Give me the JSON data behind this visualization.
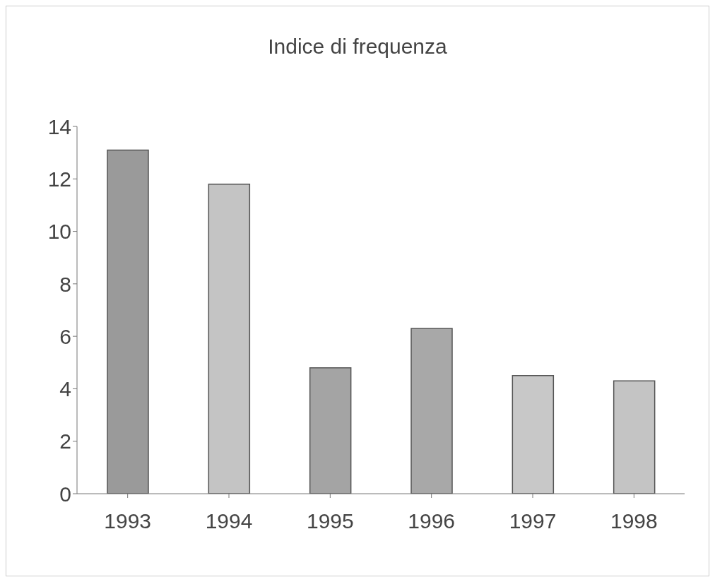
{
  "chart_data": {
    "type": "bar",
    "title": "Indice di frequenza",
    "categories": [
      "1993",
      "1994",
      "1995",
      "1996",
      "1997",
      "1998"
    ],
    "values": [
      13.1,
      11.8,
      4.8,
      6.3,
      4.5,
      4.3
    ],
    "colors": [
      "#9a9a9a",
      "#c4c4c4",
      "#a4a4a4",
      "#a8a8a8",
      "#c8c8c8",
      "#c4c4c4"
    ],
    "ylim": [
      0,
      14
    ],
    "yticks": [
      0,
      2,
      4,
      6,
      8,
      10,
      12,
      14
    ],
    "grid": false
  }
}
